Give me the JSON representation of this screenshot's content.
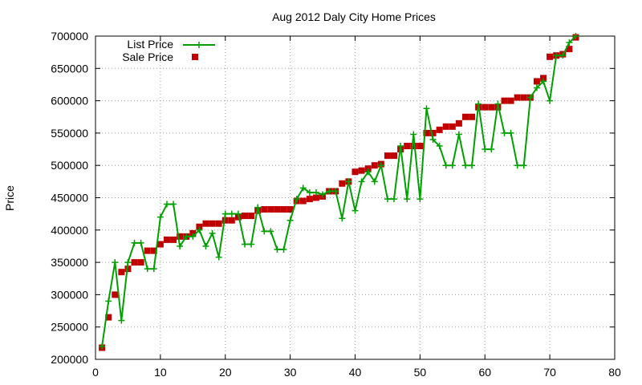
{
  "chart_data": {
    "type": "line",
    "title": "Aug 2012 Daly City Home Prices",
    "xlabel": "",
    "ylabel": "Price",
    "xlim": [
      0,
      80
    ],
    "ylim": [
      200000,
      700000
    ],
    "x_ticks": [
      0,
      10,
      20,
      30,
      40,
      50,
      60,
      70,
      80
    ],
    "y_ticks": [
      200000,
      250000,
      300000,
      350000,
      400000,
      450000,
      500000,
      550000,
      600000,
      650000,
      700000
    ],
    "grid": true,
    "legend_position": "top-left",
    "series": [
      {
        "name": "List Price",
        "style": "lines+crosses",
        "color": "#00a000",
        "x": [
          1,
          2,
          3,
          4,
          5,
          6,
          7,
          8,
          9,
          10,
          11,
          12,
          13,
          14,
          15,
          16,
          17,
          18,
          19,
          20,
          21,
          22,
          23,
          24,
          25,
          26,
          27,
          28,
          29,
          30,
          31,
          32,
          33,
          34,
          35,
          36,
          37,
          38,
          39,
          40,
          41,
          42,
          43,
          44,
          45,
          46,
          47,
          48,
          49,
          50,
          51,
          52,
          53,
          54,
          55,
          56,
          57,
          58,
          59,
          60,
          61,
          62,
          63,
          64,
          65,
          66,
          67,
          68,
          69,
          70,
          71,
          72,
          73,
          74
        ],
        "values": [
          220000,
          290000,
          350000,
          260000,
          350000,
          380000,
          380000,
          340000,
          340000,
          420000,
          440000,
          440000,
          375000,
          390000,
          390000,
          400000,
          375000,
          395000,
          358000,
          425000,
          425000,
          425000,
          378000,
          378000,
          435000,
          398000,
          398000,
          370000,
          370000,
          415000,
          448000,
          465000,
          458000,
          458000,
          455000,
          460000,
          460000,
          418000,
          475000,
          430000,
          475000,
          490000,
          475000,
          500000,
          448000,
          448000,
          530000,
          448000,
          548000,
          448000,
          588000,
          540000,
          530000,
          500000,
          500000,
          548000,
          500000,
          500000,
          595000,
          525000,
          525000,
          595000,
          550000,
          550000,
          500000,
          500000,
          605000,
          620000,
          630000,
          600000,
          670000,
          670000,
          690000,
          700000
        ]
      },
      {
        "name": "Sale Price",
        "style": "points",
        "color": "#c00000",
        "x": [
          1,
          2,
          3,
          4,
          5,
          6,
          7,
          8,
          9,
          10,
          11,
          12,
          13,
          14,
          15,
          16,
          17,
          18,
          19,
          20,
          21,
          22,
          23,
          24,
          25,
          26,
          27,
          28,
          29,
          30,
          31,
          32,
          33,
          34,
          35,
          36,
          37,
          38,
          39,
          40,
          41,
          42,
          43,
          44,
          45,
          46,
          47,
          48,
          49,
          50,
          51,
          52,
          53,
          54,
          55,
          56,
          57,
          58,
          59,
          60,
          61,
          62,
          63,
          64,
          65,
          66,
          67,
          68,
          69,
          70,
          71,
          72,
          73,
          74
        ],
        "values": [
          218000,
          265000,
          300000,
          335000,
          340000,
          350000,
          350000,
          368000,
          368000,
          378000,
          385000,
          385000,
          390000,
          390000,
          395000,
          405000,
          410000,
          410000,
          410000,
          415000,
          415000,
          420000,
          422000,
          422000,
          430000,
          432000,
          432000,
          432000,
          432000,
          432000,
          445000,
          445000,
          448000,
          450000,
          452000,
          460000,
          460000,
          472000,
          475000,
          490000,
          492000,
          495000,
          500000,
          502000,
          515000,
          515000,
          525000,
          530000,
          530000,
          530000,
          550000,
          550000,
          555000,
          560000,
          560000,
          565000,
          575000,
          575000,
          590000,
          590000,
          590000,
          590000,
          600000,
          600000,
          605000,
          605000,
          605000,
          630000,
          635000,
          668000,
          670000,
          672000,
          680000,
          698000
        ]
      }
    ]
  }
}
